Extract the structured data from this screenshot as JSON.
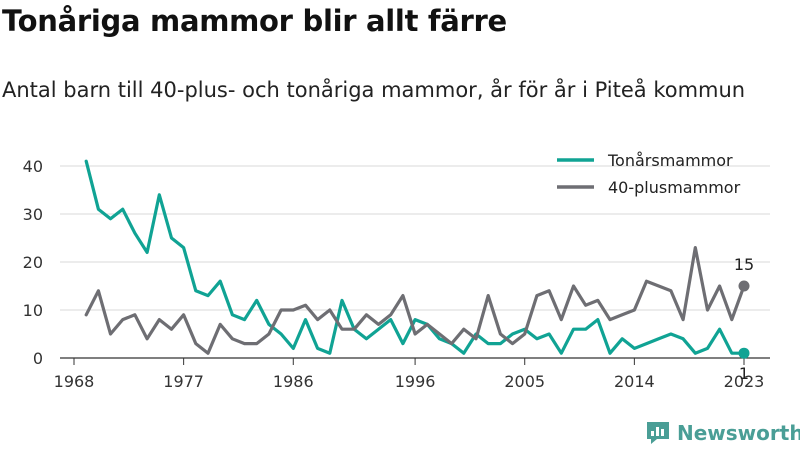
{
  "title": "Tonåriga mammor blir allt färre",
  "subtitle": "Antal barn till 40-plus- och tonåriga mammor, år för år i Piteå kommun",
  "brand": {
    "name": "Newsworthy",
    "color": "#4a9e96",
    "icon": "newsworthy-bar-chart-icon"
  },
  "chart_data": {
    "type": "line",
    "title": "Tonåriga mammor blir allt färre",
    "subtitle": "Antal barn till 40-plus- och tonåriga mammor, år för år i Piteå kommun",
    "xlabel": "",
    "ylabel": "",
    "xlim": [
      1968,
      2023
    ],
    "ylim": [
      0,
      42
    ],
    "x_ticks": [
      1968,
      1977,
      1986,
      1996,
      2005,
      2014,
      2023
    ],
    "x_tick_labels": [
      "1968",
      "1977",
      "1986",
      "1996",
      "2005",
      "2014",
      "2023"
    ],
    "y_ticks": [
      0,
      10,
      20,
      30,
      40
    ],
    "y_tick_labels": [
      "0",
      "10",
      "20",
      "30",
      "40"
    ],
    "grid": "horizontal",
    "legend_position": "top-right",
    "x": [
      1969,
      1970,
      1971,
      1972,
      1973,
      1974,
      1975,
      1976,
      1977,
      1978,
      1979,
      1980,
      1981,
      1982,
      1983,
      1984,
      1985,
      1986,
      1987,
      1988,
      1989,
      1990,
      1991,
      1992,
      1993,
      1994,
      1995,
      1996,
      1997,
      1998,
      1999,
      2000,
      2001,
      2002,
      2003,
      2004,
      2005,
      2006,
      2007,
      2008,
      2009,
      2010,
      2011,
      2012,
      2013,
      2014,
      2015,
      2016,
      2017,
      2018,
      2019,
      2020,
      2021,
      2022,
      2023
    ],
    "series": [
      {
        "name": "Tonårsmammor",
        "color": "#10a394",
        "values": [
          41,
          31,
          29,
          31,
          26,
          22,
          34,
          25,
          23,
          14,
          13,
          16,
          9,
          8,
          12,
          7,
          5,
          2,
          8,
          2,
          1,
          12,
          6,
          4,
          6,
          8,
          3,
          8,
          7,
          4,
          3,
          1,
          5,
          3,
          3,
          5,
          6,
          4,
          5,
          1,
          6,
          6,
          8,
          1,
          4,
          2,
          3,
          4,
          5,
          4,
          1,
          2,
          6,
          1,
          1
        ],
        "end_label": "1"
      },
      {
        "name": "40-plusmammor",
        "color": "#6e6e73",
        "values": [
          9,
          14,
          5,
          8,
          9,
          4,
          8,
          6,
          9,
          3,
          1,
          7,
          4,
          3,
          3,
          5,
          10,
          10,
          11,
          8,
          10,
          6,
          6,
          9,
          7,
          9,
          13,
          5,
          7,
          5,
          3,
          6,
          4,
          13,
          5,
          3,
          5,
          13,
          14,
          8,
          15,
          11,
          12,
          8,
          9,
          10,
          16,
          15,
          14,
          8,
          23,
          10,
          15,
          8,
          15
        ],
        "end_label": "15"
      }
    ]
  }
}
